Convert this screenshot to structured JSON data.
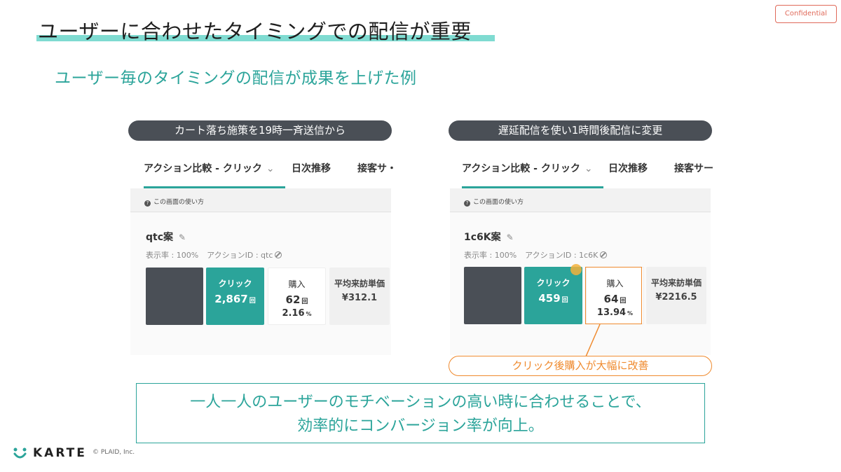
{
  "badge": {
    "confidential": "Confidential"
  },
  "title": {
    "main": "ユーザーに合わせたタイミングでの配信が重要",
    "sub": "ユーザー毎のタイミングの配信が成果を上げた例"
  },
  "colors": {
    "teal": "#2ba49a",
    "orange": "#ef8a2e",
    "dark": "#4a4f56",
    "underline": "#7fdbd1"
  },
  "left": {
    "pill": "カート落ち施策を19時一斉送信から",
    "tabs": [
      "アクション比較 - クリック",
      "日次推移",
      "接客サ・"
    ],
    "help": "この画面の使い方",
    "action_name": "qtc案",
    "meta_rate": "表示率 : 100%",
    "meta_id": "アクションID : qtc",
    "click": {
      "label": "クリック",
      "value": "2,867",
      "unit": "回"
    },
    "purchase": {
      "label": "購入",
      "value": "62",
      "unit": "回",
      "rate": "2.16",
      "rate_unit": "%"
    },
    "avg": {
      "label": "平均来訪単価",
      "value": "¥312.1"
    }
  },
  "right": {
    "pill": "遅延配信を使い1時間後配信に変更",
    "tabs": [
      "アクション比較 - クリック",
      "日次推移",
      "接客サー"
    ],
    "help": "この画面の使い方",
    "action_name": "1c6K案",
    "meta_rate": "表示率 : 100%",
    "meta_id": "アクションID : 1c6K",
    "click": {
      "label": "クリック",
      "value": "459",
      "unit": "回"
    },
    "purchase": {
      "label": "購入",
      "value": "64",
      "unit": "回",
      "rate": "13.94",
      "rate_unit": "%"
    },
    "avg": {
      "label": "平均来訪単価",
      "value": "¥2216.5"
    }
  },
  "callout": "クリック後購入が大幅に改善",
  "conclusion": {
    "line1": "一人一人のユーザーのモチベーションの高い時に合わせることで、",
    "line2": "効率的にコンバージョン率が向上。"
  },
  "footer": {
    "logo": "KARTE",
    "copyright": "© PLAID, Inc."
  }
}
